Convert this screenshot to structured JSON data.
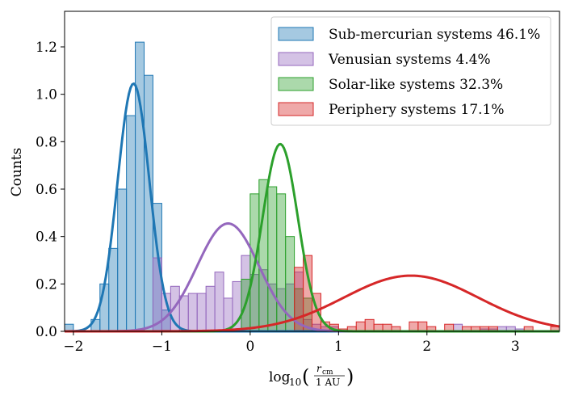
{
  "chart_data": {
    "type": "histogram",
    "xlabel_prefix": "log",
    "xlabel_sub": "10",
    "xlabel_frac_num": "r",
    "xlabel_frac_num_sub": "cm",
    "xlabel_frac_den": "1 AU",
    "ylabel": "Counts",
    "xlim": [
      -2.1,
      3.5
    ],
    "ylim": [
      0.0,
      1.35
    ],
    "xticks": [
      -2,
      -1,
      0,
      1,
      2,
      3
    ],
    "yticks": [
      0.0,
      0.2,
      0.4,
      0.6,
      0.8,
      1.0,
      1.2
    ],
    "legend_placement": "top-right",
    "bin_width": 0.1,
    "series": [
      {
        "name": "Sub-mercurian systems 46.1%",
        "color": "#1f77b4",
        "bars": [
          [
            -2.05,
            0.03
          ],
          [
            -1.75,
            0.05
          ],
          [
            -1.65,
            0.2
          ],
          [
            -1.55,
            0.35
          ],
          [
            -1.45,
            0.6
          ],
          [
            -1.35,
            0.91
          ],
          [
            -1.25,
            1.22
          ],
          [
            -1.15,
            1.08
          ],
          [
            -1.05,
            0.54
          ],
          [
            -0.95,
            0.09
          ]
        ],
        "curve": {
          "mu": -1.32,
          "sigma": 0.18,
          "amp": 1.045
        }
      },
      {
        "name": "Venusian systems 4.4%",
        "color": "#9467bd",
        "bars": [
          [
            -1.05,
            0.31
          ],
          [
            -0.95,
            0.16
          ],
          [
            -0.85,
            0.19
          ],
          [
            -0.75,
            0.15
          ],
          [
            -0.65,
            0.16
          ],
          [
            -0.55,
            0.16
          ],
          [
            -0.45,
            0.19
          ],
          [
            -0.35,
            0.25
          ],
          [
            -0.25,
            0.14
          ],
          [
            -0.15,
            0.21
          ],
          [
            -0.05,
            0.32
          ],
          [
            0.05,
            0.24
          ],
          [
            0.15,
            0.26
          ],
          [
            0.25,
            0.2
          ],
          [
            0.35,
            0.18
          ],
          [
            0.45,
            0.2
          ],
          [
            0.55,
            0.25
          ],
          [
            0.65,
            0.05
          ],
          [
            0.75,
            0.03
          ],
          [
            0.85,
            0.02
          ],
          [
            0.95,
            0.02
          ],
          [
            2.35,
            0.03
          ],
          [
            2.65,
            0.01
          ],
          [
            2.75,
            0.01
          ],
          [
            2.85,
            0.02
          ],
          [
            2.95,
            0.02
          ],
          [
            3.05,
            0.01
          ]
        ],
        "curve": {
          "mu": -0.25,
          "sigma": 0.35,
          "amp": 0.455
        }
      },
      {
        "name": "Solar-like systems 32.3%",
        "color": "#2ca02c",
        "bars": [
          [
            -0.05,
            0.22
          ],
          [
            0.05,
            0.58
          ],
          [
            0.15,
            0.64
          ],
          [
            0.25,
            0.61
          ],
          [
            0.35,
            0.58
          ],
          [
            0.45,
            0.4
          ],
          [
            0.55,
            0.18
          ],
          [
            0.65,
            0.14
          ]
        ],
        "curve": {
          "mu": 0.34,
          "sigma": 0.2,
          "amp": 0.79
        }
      },
      {
        "name": "Periphery systems 17.1%",
        "color": "#d62728",
        "bars": [
          [
            0.55,
            0.27
          ],
          [
            0.65,
            0.32
          ],
          [
            0.75,
            0.16
          ],
          [
            0.85,
            0.04
          ],
          [
            0.95,
            0.03
          ],
          [
            1.05,
            0.01
          ],
          [
            1.15,
            0.02
          ],
          [
            1.25,
            0.04
          ],
          [
            1.35,
            0.05
          ],
          [
            1.45,
            0.03
          ],
          [
            1.55,
            0.03
          ],
          [
            1.65,
            0.02
          ],
          [
            1.85,
            0.04
          ],
          [
            1.95,
            0.04
          ],
          [
            2.05,
            0.02
          ],
          [
            2.25,
            0.03
          ],
          [
            2.45,
            0.02
          ],
          [
            2.55,
            0.02
          ],
          [
            2.65,
            0.02
          ],
          [
            2.75,
            0.02
          ],
          [
            3.15,
            0.02
          ],
          [
            3.45,
            0.02
          ]
        ],
        "curve": {
          "mu": 1.82,
          "sigma": 0.76,
          "amp": 0.235
        }
      }
    ]
  }
}
